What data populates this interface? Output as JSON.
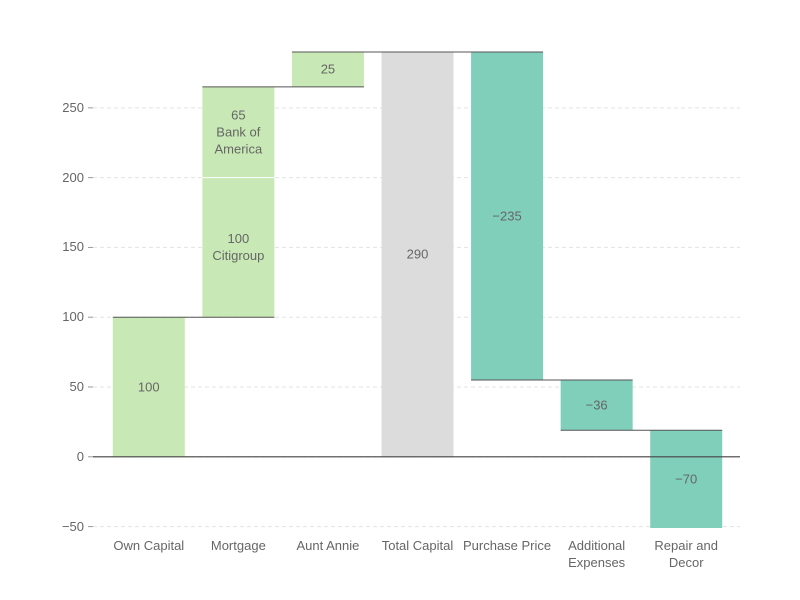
{
  "chart_data": {
    "type": "waterfall",
    "ylim": [
      -51,
      290
    ],
    "yticks": [
      {
        "value": -50,
        "label": "−50"
      },
      0,
      50,
      100,
      150,
      200,
      250
    ],
    "grid": true,
    "bars": [
      {
        "category": "Own Capital",
        "color": "#c8e9b5",
        "segments": [
          {
            "value": 100
          }
        ]
      },
      {
        "category": "Mortgage",
        "color": "#c8e9b5",
        "segments": [
          {
            "value": 100,
            "name": "Citigroup"
          },
          {
            "value": 65,
            "name": "Bank of America"
          }
        ]
      },
      {
        "category": "Aunt Annie",
        "color": "#c8e9b5",
        "segments": [
          {
            "value": 25
          }
        ]
      },
      {
        "category": "Total Capital",
        "color": "#dcdcdc",
        "total": true,
        "segments": [
          {
            "value": 290
          }
        ]
      },
      {
        "category": "Purchase Price",
        "color": "#80cfba",
        "segments": [
          {
            "value": -235,
            "value_label": "−235"
          }
        ]
      },
      {
        "category": "Additional Expenses",
        "color": "#80cfba",
        "segments": [
          {
            "value": -36,
            "value_label": "−36"
          }
        ]
      },
      {
        "category": "Repair and Decor",
        "color": "#80cfba",
        "segments": [
          {
            "value": -70,
            "value_label": "−70"
          }
        ]
      }
    ]
  }
}
